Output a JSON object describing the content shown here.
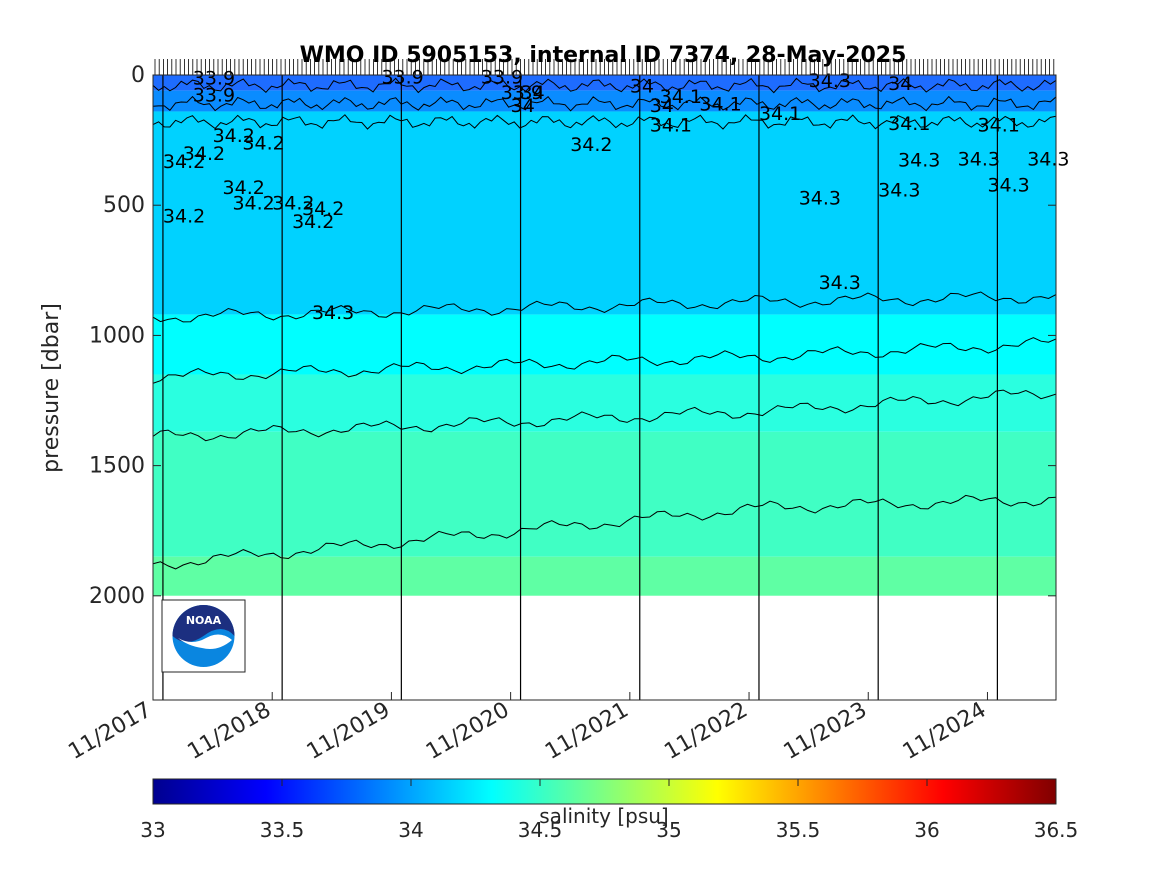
{
  "chart_data": {
    "type": "heatmap",
    "title": "WMO ID 5905153, internal ID 7374, 28-May-2025",
    "ylabel": "pressure [dbar]",
    "xlabel": "",
    "x_axis": {
      "type": "date",
      "range": [
        "2017-11-01",
        "2025-05-28"
      ],
      "tick_labels": [
        "11/2017",
        "11/2018",
        "11/2019",
        "11/2020",
        "11/2021",
        "11/2022",
        "11/2023",
        "11/2024"
      ],
      "tick_values": [
        "2017-11",
        "2018-11",
        "2019-11",
        "2020-11",
        "2021-11",
        "2022-11",
        "2023-11",
        "2024-11"
      ]
    },
    "y_axis": {
      "reversed": true,
      "range": [
        0,
        2400
      ],
      "tick_values": [
        0,
        500,
        1000,
        1500,
        2000
      ],
      "tick_labels": [
        "0",
        "500",
        "1000",
        "1500",
        "2000"
      ]
    },
    "colorbar": {
      "label": "salinity [psu]",
      "range": [
        33,
        36.5
      ],
      "colormap": "jet",
      "tick_values": [
        33,
        33.5,
        34,
        34.5,
        35,
        35.5,
        36,
        36.5
      ],
      "tick_labels": [
        "33",
        "33.5",
        "34",
        "34.5",
        "35",
        "35.5",
        "36",
        "36.5"
      ]
    },
    "max_profile_depth": 2000,
    "salinity_layers": [
      {
        "pressure_top": 0,
        "pressure_bottom": 60,
        "salinity": 33.85,
        "color": "#1e6cff"
      },
      {
        "pressure_top": 60,
        "pressure_bottom": 140,
        "salinity": 34.0,
        "color": "#0a8cff"
      },
      {
        "pressure_top": 140,
        "pressure_bottom": 920,
        "salinity": 34.25,
        "color": "#00d2ff"
      },
      {
        "pressure_top": 920,
        "pressure_bottom": 1150,
        "salinity": 34.35,
        "color": "#00ffff"
      },
      {
        "pressure_top": 1150,
        "pressure_bottom": 1370,
        "salinity": 34.45,
        "color": "#2affe0"
      },
      {
        "pressure_top": 1370,
        "pressure_bottom": 1850,
        "salinity": 34.55,
        "color": "#40ffc4"
      },
      {
        "pressure_top": 1850,
        "pressure_bottom": 2000,
        "salinity": 34.65,
        "color": "#5fffa4"
      }
    ],
    "deep_isohalines": [
      {
        "start": [
          "2017-11",
          930
        ],
        "mid": [
          "2023-01",
          870
        ],
        "end": [
          "2025-05",
          850
        ]
      },
      {
        "start": [
          "2017-11",
          1160
        ],
        "mid": [
          "2023-01",
          1080
        ],
        "end": [
          "2025-05",
          1030
        ]
      },
      {
        "start": [
          "2017-11",
          1390
        ],
        "mid": [
          "2023-01",
          1290
        ],
        "end": [
          "2025-05",
          1220
        ]
      },
      {
        "start": [
          "2017-11",
          1880
        ],
        "mid": [
          "2023-01",
          1660
        ],
        "end": [
          "2025-05",
          1630
        ]
      }
    ],
    "contour_labels": [
      {
        "text": "33.9",
        "date": "2018-03",
        "p": 10
      },
      {
        "text": "33.9",
        "date": "2018-03",
        "p": 75
      },
      {
        "text": "33.9",
        "date": "2019-10",
        "p": 5
      },
      {
        "text": "33.9",
        "date": "2020-08",
        "p": 5
      },
      {
        "text": "33.9",
        "date": "2020-10",
        "p": 65
      },
      {
        "text": "34",
        "date": "2020-12",
        "p": 65
      },
      {
        "text": "34",
        "date": "2020-11",
        "p": 115
      },
      {
        "text": "34",
        "date": "2021-11",
        "p": 40
      },
      {
        "text": "34.1",
        "date": "2022-02",
        "p": 80
      },
      {
        "text": "34",
        "date": "2022-01",
        "p": 115
      },
      {
        "text": "34.1",
        "date": "2022-06",
        "p": 110
      },
      {
        "text": "34.1",
        "date": "2022-01",
        "p": 190
      },
      {
        "text": "34.1",
        "date": "2022-12",
        "p": 145
      },
      {
        "text": "34.3",
        "date": "2023-05",
        "p": 20
      },
      {
        "text": "34",
        "date": "2024-01",
        "p": 30
      },
      {
        "text": "34.1",
        "date": "2024-01",
        "p": 185
      },
      {
        "text": "34.1",
        "date": "2024-10",
        "p": 190
      },
      {
        "text": "34.2",
        "date": "2018-05",
        "p": 230
      },
      {
        "text": "34.2",
        "date": "2018-02",
        "p": 300
      },
      {
        "text": "34.2",
        "date": "2018-08",
        "p": 260
      },
      {
        "text": "34.2",
        "date": "2017-12",
        "p": 330
      },
      {
        "text": "34.2",
        "date": "2021-05",
        "p": 265
      },
      {
        "text": "34.2",
        "date": "2018-06",
        "p": 430
      },
      {
        "text": "34.2",
        "date": "2018-07",
        "p": 490
      },
      {
        "text": "34.2",
        "date": "2018-11",
        "p": 490
      },
      {
        "text": "34.2",
        "date": "2019-02",
        "p": 510
      },
      {
        "text": "34.2",
        "date": "2019-01",
        "p": 560
      },
      {
        "text": "34.2",
        "date": "2017-12",
        "p": 540
      },
      {
        "text": "34.3",
        "date": "2023-04",
        "p": 470
      },
      {
        "text": "34.3",
        "date": "2023-12",
        "p": 440
      },
      {
        "text": "34.3",
        "date": "2024-02",
        "p": 325
      },
      {
        "text": "34.3",
        "date": "2024-08",
        "p": 320
      },
      {
        "text": "34.3",
        "date": "2024-11",
        "p": 420
      },
      {
        "text": "34.3",
        "date": "2025-03",
        "p": 320
      },
      {
        "text": "34.3",
        "date": "2023-06",
        "p": 795
      },
      {
        "text": "34.3",
        "date": "2019-03",
        "p": 910
      }
    ],
    "annual_profile_markers": [
      "2017-12",
      "2018-12",
      "2019-12",
      "2020-12",
      "2021-12",
      "2022-12",
      "2023-12",
      "2024-12"
    ],
    "logo": {
      "name": "noaa-logo",
      "text": "NOAA"
    }
  }
}
